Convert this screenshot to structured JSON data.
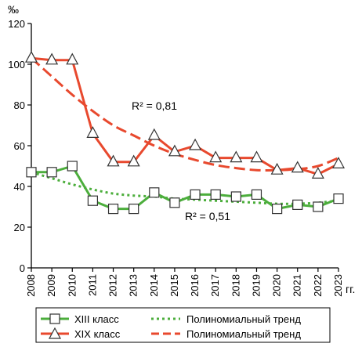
{
  "chart_data": {
    "type": "line",
    "y_unit": "‰",
    "x_unit": "гг.",
    "x": [
      2008,
      2009,
      2010,
      2011,
      2012,
      2013,
      2014,
      2015,
      2016,
      2017,
      2018,
      2019,
      2020,
      2021,
      2022,
      2023
    ],
    "ylim": [
      0,
      120
    ],
    "yticks": [
      0,
      20,
      40,
      60,
      80,
      100,
      120
    ],
    "grid": false,
    "legend_position": "bottom",
    "series": [
      {
        "name": "XIII класс",
        "color": "#4cae3c",
        "marker": "square",
        "values": [
          47,
          47,
          50,
          33,
          29,
          29,
          37,
          32,
          36,
          36,
          35,
          36,
          29,
          31,
          30,
          34
        ]
      },
      {
        "name": "XIX класс",
        "color": "#e8492e",
        "marker": "triangle",
        "values": [
          103,
          102,
          102,
          66,
          52,
          52,
          65,
          57,
          60,
          54,
          54,
          54,
          48,
          49,
          46,
          51
        ]
      }
    ],
    "trends": [
      {
        "name": "Полиномиальный тренд",
        "color": "#4cae3c",
        "style": "dotted",
        "r2_label": "R² = 0,51",
        "values": [
          47,
          44,
          41,
          38.5,
          36.5,
          35.5,
          35,
          34,
          33.5,
          33,
          32.5,
          32,
          31.5,
          31.5,
          32,
          33
        ]
      },
      {
        "name": "Полиномиальный тренд",
        "color": "#e8492e",
        "style": "dashed",
        "r2_label": "R² = 0,81",
        "values": [
          103,
          94,
          85,
          77,
          70,
          65,
          60,
          56,
          53,
          50.5,
          49,
          48,
          48,
          48.5,
          50,
          54
        ]
      }
    ]
  },
  "legend": {
    "items": [
      {
        "label": "XIII класс"
      },
      {
        "label": "Полиномиальный тренд"
      },
      {
        "label": "XIX класс"
      },
      {
        "label": "Полиномиальный тренд"
      }
    ]
  }
}
